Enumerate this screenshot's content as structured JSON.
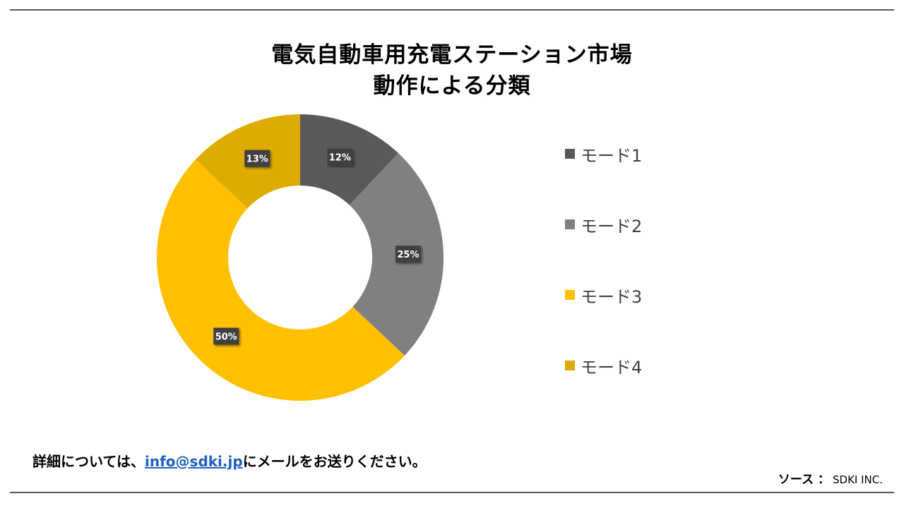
{
  "title_lines": [
    "電気自動車用充電ステーション市場",
    "動作による分類"
  ],
  "chart_data": {
    "type": "pie",
    "style": "donut",
    "title": "電気自動車用充電ステーション市場 動作による分類",
    "categories": [
      "モード1",
      "モード2",
      "モード3",
      "モード4"
    ],
    "values": [
      12,
      25,
      50,
      13
    ],
    "data_labels": [
      "12%",
      "25%",
      "50%",
      "13%"
    ],
    "colors": [
      "#595959",
      "#808080",
      "#ffc000",
      "#deac00"
    ],
    "legend_position": "right",
    "start_angle": "12 o'clock",
    "direction": "clockwise"
  },
  "footer": {
    "prefix": "詳細については、",
    "email": "info@sdki.jp",
    "suffix": "にメールをお送りください。"
  },
  "source": {
    "label": "ソース ：",
    "value": "SDKI INC."
  }
}
